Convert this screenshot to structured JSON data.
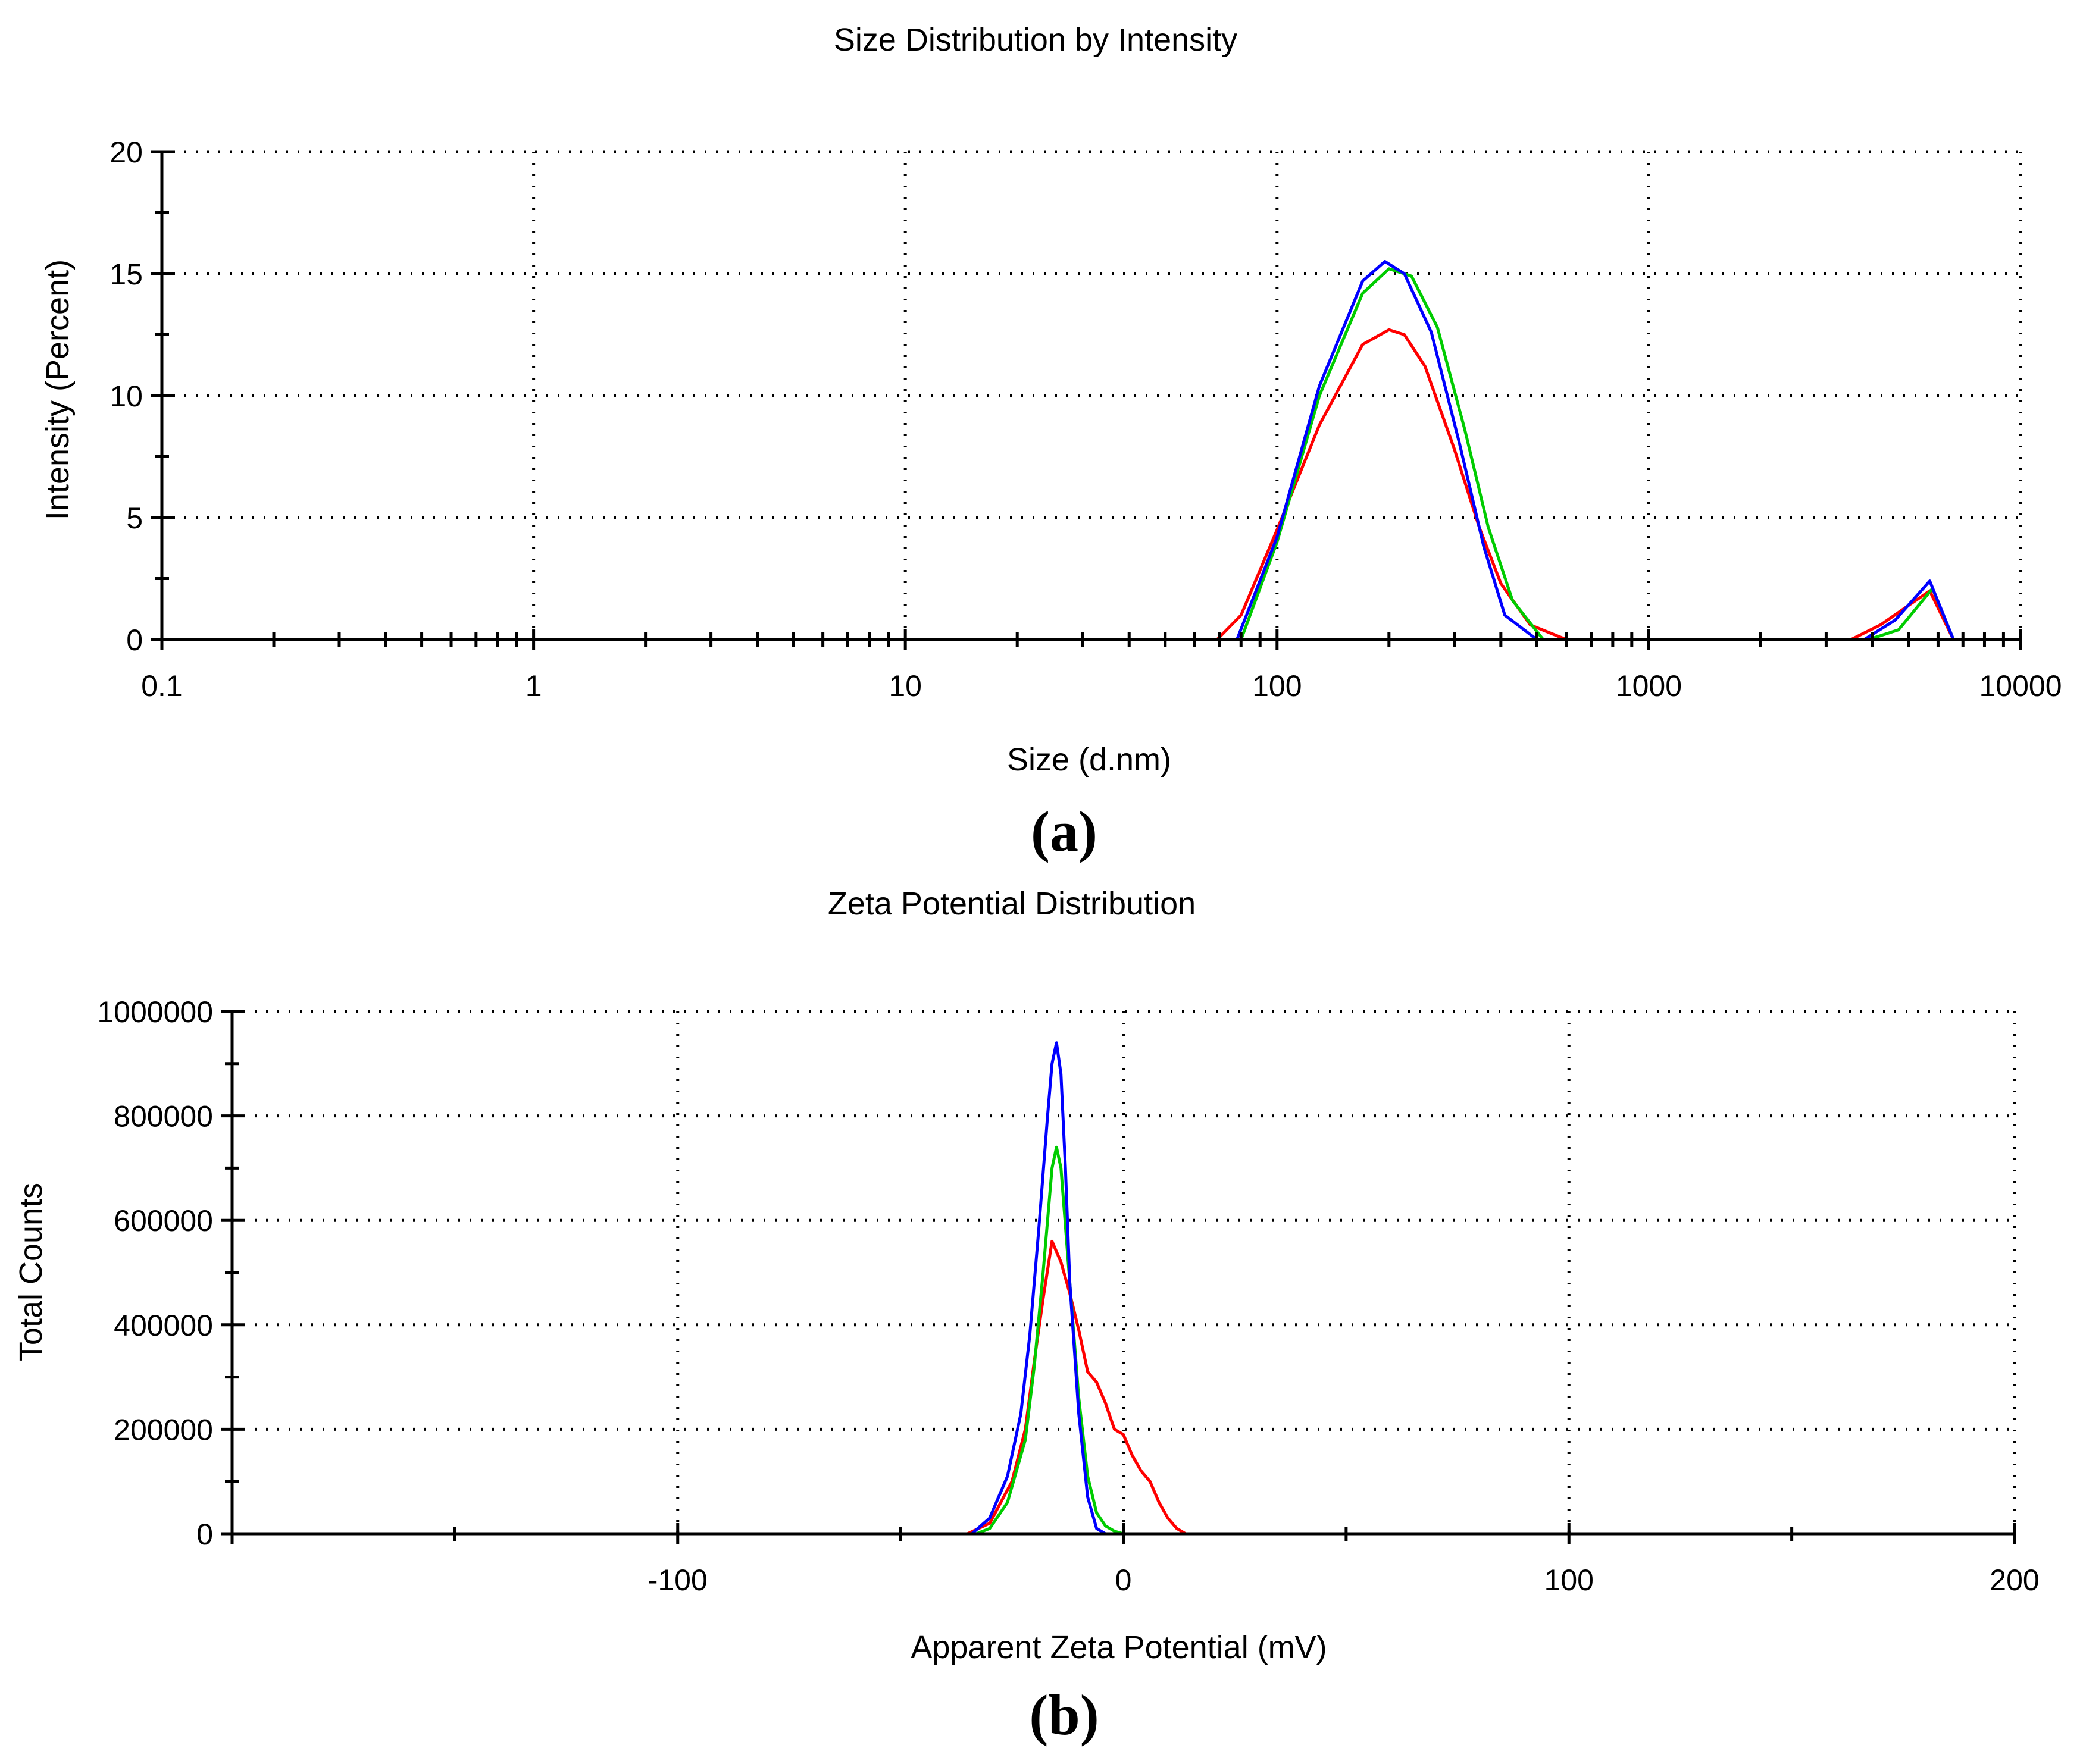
{
  "figure": {
    "panel_labels": [
      "(a)",
      "(b)"
    ]
  },
  "chart_data": [
    {
      "type": "line",
      "title": "Size Distribution by Intensity",
      "xlabel": "Size (d.nm)",
      "ylabel": "Intensity (Percent)",
      "xscale": "log",
      "xlim": [
        0.1,
        10000
      ],
      "ylim": [
        0,
        20
      ],
      "xticks": [
        0.1,
        1,
        10,
        100,
        1000,
        10000
      ],
      "xtick_labels": [
        "0.1",
        "1",
        "10",
        "100",
        "1000",
        "10000"
      ],
      "yticks": [
        0,
        5,
        10,
        15,
        20
      ],
      "ytick_labels": [
        "0",
        "5",
        "10",
        "15",
        "20"
      ],
      "grid": true,
      "series": [
        {
          "name": "red",
          "color": "#ff0000",
          "x": [
            0.4,
            69,
            80,
            100,
            130,
            170,
            200,
            220,
            250,
            300,
            350,
            400,
            480,
            600,
            3500,
            4200,
            5000,
            5700,
            6600,
            10000
          ],
          "y": [
            0,
            0,
            1.0,
            4.5,
            8.8,
            12.1,
            12.7,
            12.5,
            11.2,
            7.8,
            4.6,
            2.3,
            0.6,
            0,
            0,
            0.6,
            1.4,
            2.0,
            0,
            0
          ]
        },
        {
          "name": "green",
          "color": "#00cc00",
          "x": [
            0.4,
            80,
            100,
            130,
            170,
            200,
            230,
            270,
            320,
            370,
            430,
            520,
            3900,
            4700,
            5800,
            6600,
            10000
          ],
          "y": [
            0,
            0,
            4.0,
            10.0,
            14.2,
            15.2,
            14.9,
            12.8,
            8.6,
            4.6,
            1.6,
            0,
            0,
            0.4,
            2.1,
            0,
            0
          ]
        },
        {
          "name": "blue",
          "color": "#0000ff",
          "x": [
            0.4,
            78,
            100,
            130,
            170,
            195,
            220,
            260,
            310,
            360,
            410,
            500,
            3800,
            4600,
            5700,
            6600,
            10000
          ],
          "y": [
            0,
            0,
            4.2,
            10.4,
            14.7,
            15.5,
            15.0,
            12.6,
            8.0,
            3.8,
            1.0,
            0,
            0,
            0.8,
            2.4,
            0,
            0
          ]
        }
      ]
    },
    {
      "type": "line",
      "title": "Zeta Potential Distribution",
      "xlabel": "Apparent Zeta Potential (mV)",
      "ylabel": "Total Counts",
      "xlim": [
        -200,
        200
      ],
      "ylim": [
        0,
        1000000
      ],
      "xticks": [
        -100,
        0,
        100,
        200
      ],
      "xtick_labels": [
        "-100",
        "0",
        "100",
        "200"
      ],
      "yticks": [
        0,
        200000,
        400000,
        600000,
        800000,
        1000000
      ],
      "ytick_labels": [
        "0",
        "200000",
        "400000",
        "600000",
        "800000",
        "1000000"
      ],
      "grid": true,
      "series": [
        {
          "name": "red",
          "color": "#ff0000",
          "x": [
            -150,
            -35,
            -30,
            -25,
            -22,
            -20,
            -18,
            -16,
            -14,
            -12,
            -10,
            -8,
            -6,
            -4,
            -2,
            0,
            2,
            4,
            6,
            8,
            10,
            12,
            14,
            150
          ],
          "y": [
            0,
            0,
            20000,
            100000,
            200000,
            330000,
            450000,
            560000,
            520000,
            460000,
            390000,
            310000,
            290000,
            250000,
            200000,
            190000,
            150000,
            120000,
            100000,
            60000,
            30000,
            10000,
            0,
            0
          ]
        },
        {
          "name": "green",
          "color": "#00cc00",
          "x": [
            -150,
            -33,
            -30,
            -26,
            -22,
            -20,
            -18,
            -16,
            -15,
            -14,
            -12,
            -10,
            -8,
            -6,
            -4,
            -2,
            0,
            150
          ],
          "y": [
            0,
            0,
            10000,
            60000,
            180000,
            320000,
            500000,
            700000,
            740000,
            700000,
            480000,
            260000,
            110000,
            40000,
            15000,
            5000,
            0,
            0
          ]
        },
        {
          "name": "blue",
          "color": "#0000ff",
          "x": [
            -150,
            -34,
            -30,
            -26,
            -23,
            -21,
            -19,
            -17,
            -16,
            -15,
            -14,
            -13,
            -12,
            -10,
            -8,
            -6,
            -4,
            150
          ],
          "y": [
            0,
            0,
            30000,
            110000,
            230000,
            380000,
            580000,
            800000,
            900000,
            940000,
            880000,
            700000,
            480000,
            230000,
            70000,
            10000,
            0,
            0
          ]
        }
      ]
    }
  ]
}
